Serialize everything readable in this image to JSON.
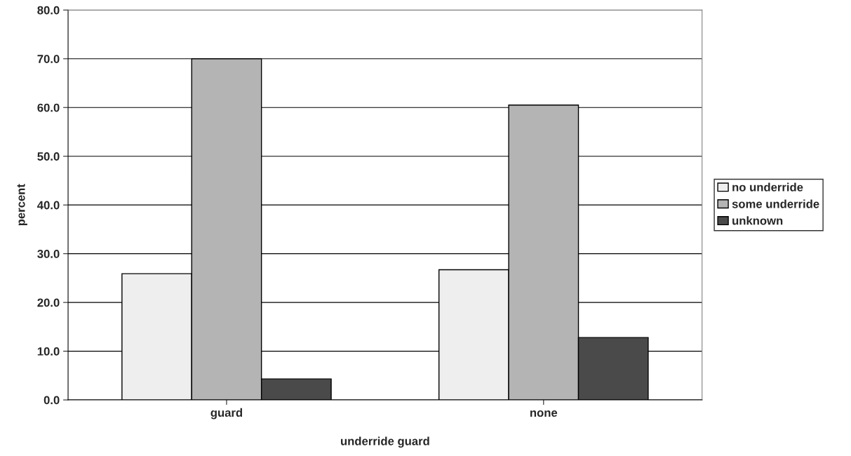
{
  "chart_data": {
    "type": "bar",
    "xlabel": "underride guard",
    "ylabel": "percent",
    "categories": [
      "guard",
      "none"
    ],
    "series": [
      {
        "name": "no underride",
        "color": "#eeeeee",
        "values": [
          25.9,
          26.7
        ]
      },
      {
        "name": "some underride",
        "color": "#b4b4b4",
        "values": [
          70.0,
          60.5
        ]
      },
      {
        "name": "unknown",
        "color": "#4a4a4a",
        "values": [
          4.3,
          12.8
        ]
      }
    ],
    "ylim": [
      0,
      80
    ],
    "yticks": [
      {
        "value": 0,
        "label": "0.0"
      },
      {
        "value": 10,
        "label": "10.0"
      },
      {
        "value": 20,
        "label": "20.0"
      },
      {
        "value": 30,
        "label": "30.0"
      },
      {
        "value": 40,
        "label": "40.0"
      },
      {
        "value": 50,
        "label": "50.0"
      },
      {
        "value": 60,
        "label": "60.0"
      },
      {
        "value": 70,
        "label": "70.0"
      },
      {
        "value": 80,
        "label": "80.0"
      }
    ],
    "grid": "y",
    "legend": "right"
  }
}
